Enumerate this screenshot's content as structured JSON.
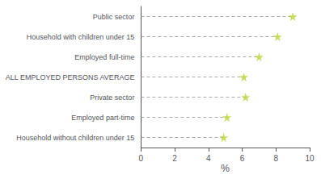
{
  "chart_data": {
    "type": "lollipop",
    "orientation": "horizontal",
    "categories": [
      "Public sector",
      "Household with children under 15",
      "Employed full-time",
      "ALL EMPLOYED PERSONS AVERAGE",
      "Private sector",
      "Employed part-time",
      "Household without children under 15"
    ],
    "values": [
      9.0,
      8.1,
      7.0,
      6.1,
      6.2,
      5.1,
      4.9
    ],
    "xlabel": "%",
    "xlim": [
      0,
      10
    ],
    "xticks": [
      0,
      2,
      4,
      6,
      8,
      10
    ],
    "marker": "star",
    "line_style": "dashed",
    "grid": false
  }
}
